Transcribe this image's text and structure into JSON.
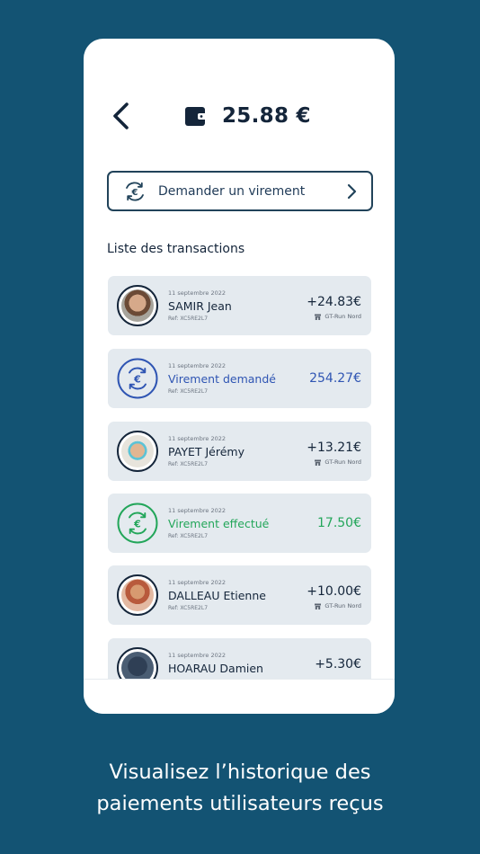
{
  "header": {
    "balance": "25.88 €"
  },
  "request_button": {
    "label": "Demander un virement"
  },
  "list_title": "Liste des transactions",
  "transactions": [
    {
      "date": "11 septembre 2022",
      "name": "SAMIR Jean",
      "ref": "Ref: XC5RE2L7",
      "amount": "+24.83€",
      "location": "GT-Run Nord"
    },
    {
      "date": "11 septembre 2022",
      "name": "Virement demandé",
      "ref": "Ref: XC5RE2L7",
      "amount": "254.27€"
    },
    {
      "date": "11 septembre 2022",
      "name": "PAYET Jérémy",
      "ref": "Ref: XC5RE2L7",
      "amount": "+13.21€",
      "location": "GT-Run Nord"
    },
    {
      "date": "11 septembre 2022",
      "name": "Virement effectué",
      "ref": "Ref: XC5RE2L7",
      "amount": "17.50€"
    },
    {
      "date": "11 septembre 2022",
      "name": "DALLEAU Etienne",
      "ref": "Ref: XC5RE2L7",
      "amount": "+10.00€",
      "location": "GT-Run Nord"
    },
    {
      "date": "11 septembre 2022",
      "name": "HOARAU Damien",
      "amount": "+5.30€"
    }
  ],
  "caption": {
    "line1": "Visualisez l’historique des",
    "line2": "paiements utilisateurs reçus"
  },
  "colors": {
    "background": "#135373",
    "primary_text": "#14253a",
    "requested_blue": "#2f55b3",
    "completed_green": "#23a65a",
    "card_bg": "#e4eaef"
  },
  "icons": [
    "back-arrow-icon",
    "wallet-icon",
    "euro-exchange-icon",
    "chevron-right-icon",
    "store-icon"
  ]
}
